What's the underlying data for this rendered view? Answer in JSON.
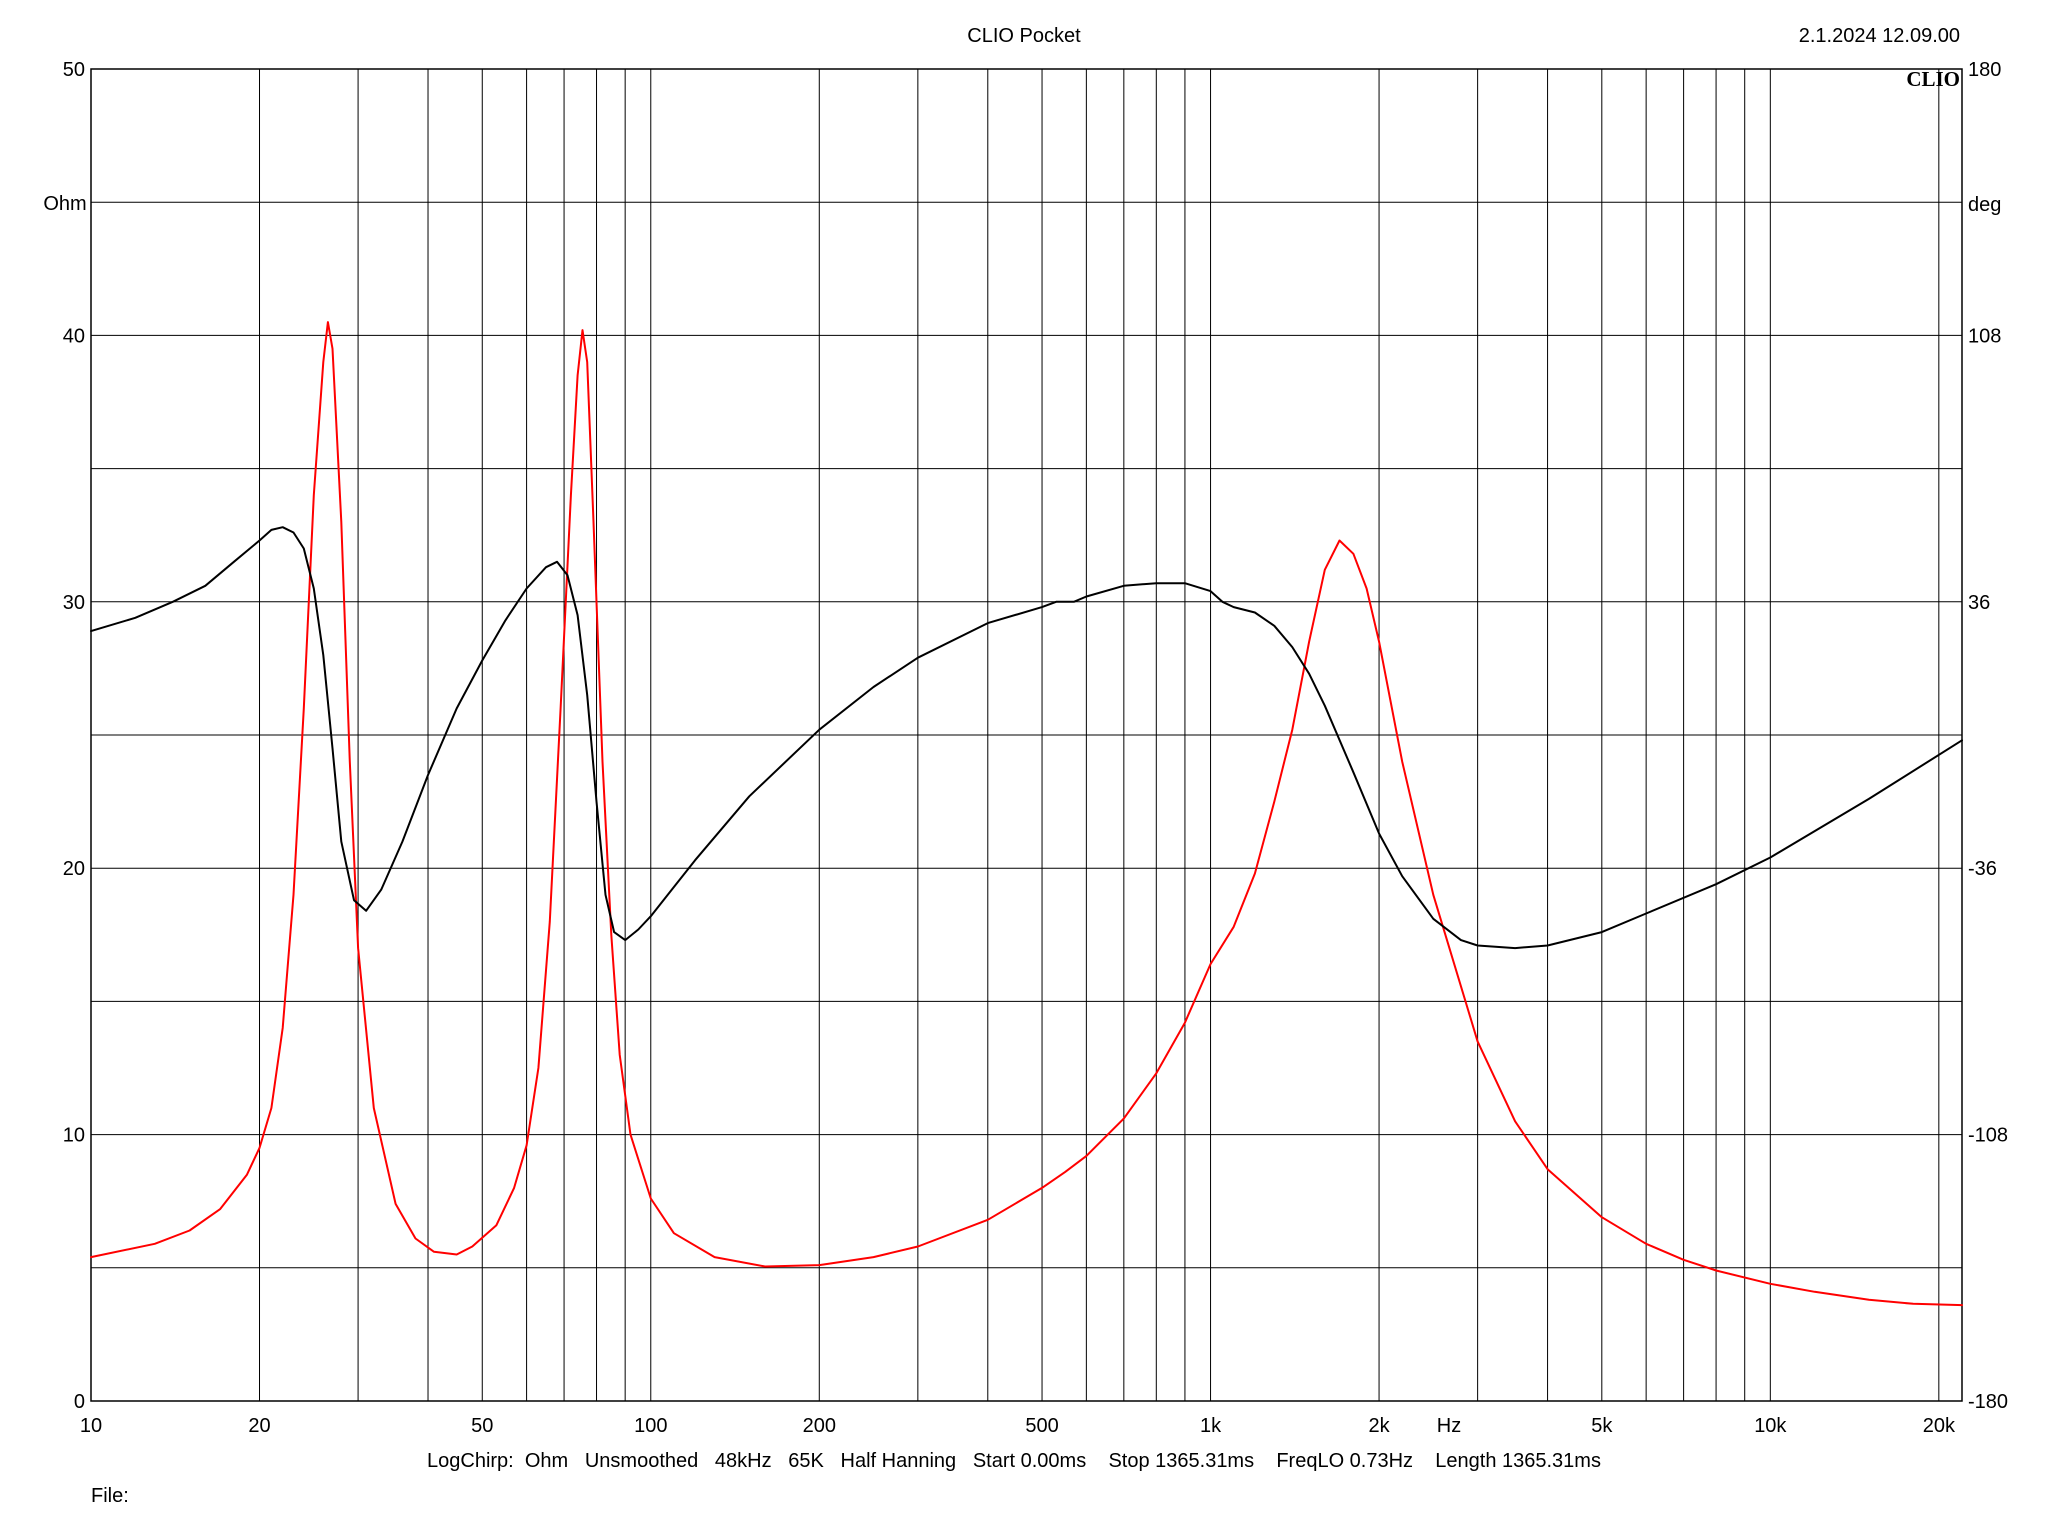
{
  "header": {
    "title": "CLIO Pocket",
    "datetime": "2.1.2024 12.09.00",
    "logo": "CLIO"
  },
  "footer": {
    "settings": "LogChirp:  Ohm   Unsmoothed   48kHz   65K   Half Hanning   Start 0.00ms    Stop 1365.31ms    FreqLO 0.73Hz    Length 1365.31ms",
    "file_label": "File:"
  },
  "chart_data": {
    "type": "line",
    "xscale": "log",
    "xlim": [
      10,
      22000
    ],
    "ylim": [
      0,
      50
    ],
    "y2lim": [
      -180,
      180
    ],
    "grid": true,
    "xlabel": "Hz",
    "ylabel": "Ohm",
    "y2label": "deg",
    "x_ticks": [
      {
        "value": 10,
        "label": "10"
      },
      {
        "value": 20,
        "label": "20"
      },
      {
        "value": 50,
        "label": "50"
      },
      {
        "value": 100,
        "label": "100"
      },
      {
        "value": 200,
        "label": "200"
      },
      {
        "value": 500,
        "label": "500"
      },
      {
        "value": 1000,
        "label": "1k"
      },
      {
        "value": 2000,
        "label": "2k"
      },
      {
        "value": 5000,
        "label": "5k"
      },
      {
        "value": 10000,
        "label": "10k"
      },
      {
        "value": 20000,
        "label": "20k"
      }
    ],
    "y_ticks": [
      {
        "value": 0,
        "label": "0"
      },
      {
        "value": 10,
        "label": "10"
      },
      {
        "value": 20,
        "label": "20"
      },
      {
        "value": 30,
        "label": "30"
      },
      {
        "value": 40,
        "label": "40"
      },
      {
        "value": 50,
        "label": "50"
      }
    ],
    "y2_ticks": [
      {
        "value": -180,
        "label": "-180"
      },
      {
        "value": -108,
        "label": "-108"
      },
      {
        "value": -36,
        "label": "-36"
      },
      {
        "value": 36,
        "label": "36"
      },
      {
        "value": 108,
        "label": "108"
      },
      {
        "value": 180,
        "label": "180"
      }
    ],
    "series": [
      {
        "axis": "left",
        "color": "#ff0000",
        "points": [
          [
            10,
            5.4
          ],
          [
            13,
            5.9
          ],
          [
            15,
            6.4
          ],
          [
            17,
            7.2
          ],
          [
            19,
            8.5
          ],
          [
            20,
            9.5
          ],
          [
            21,
            11
          ],
          [
            22,
            14
          ],
          [
            23,
            19
          ],
          [
            24,
            26
          ],
          [
            25,
            34
          ],
          [
            26,
            39
          ],
          [
            26.5,
            40.5
          ],
          [
            27,
            39.5
          ],
          [
            28,
            33
          ],
          [
            29,
            24
          ],
          [
            30,
            17
          ],
          [
            32,
            11
          ],
          [
            35,
            7.4
          ],
          [
            38,
            6.1
          ],
          [
            41,
            5.6
          ],
          [
            45,
            5.5
          ],
          [
            48,
            5.8
          ],
          [
            53,
            6.6
          ],
          [
            57,
            8
          ],
          [
            60,
            9.6
          ],
          [
            63,
            12.5
          ],
          [
            66,
            18
          ],
          [
            69,
            26
          ],
          [
            72,
            34
          ],
          [
            74,
            38.5
          ],
          [
            75.5,
            40.2
          ],
          [
            77,
            39
          ],
          [
            79,
            33
          ],
          [
            82,
            24
          ],
          [
            85,
            17.5
          ],
          [
            88,
            13
          ],
          [
            92,
            10
          ],
          [
            100,
            7.6
          ],
          [
            110,
            6.3
          ],
          [
            130,
            5.4
          ],
          [
            160,
            5.05
          ],
          [
            200,
            5.1
          ],
          [
            250,
            5.4
          ],
          [
            300,
            5.8
          ],
          [
            400,
            6.8
          ],
          [
            500,
            8
          ],
          [
            550,
            8.6
          ],
          [
            600,
            9.2
          ],
          [
            700,
            10.6
          ],
          [
            800,
            12.3
          ],
          [
            900,
            14.2
          ],
          [
            1000,
            16.4
          ],
          [
            1100,
            17.8
          ],
          [
            1200,
            19.8
          ],
          [
            1300,
            22.5
          ],
          [
            1400,
            25.2
          ],
          [
            1500,
            28.5
          ],
          [
            1600,
            31.2
          ],
          [
            1700,
            32.3
          ],
          [
            1800,
            31.8
          ],
          [
            1900,
            30.5
          ],
          [
            2000,
            28.5
          ],
          [
            2200,
            24
          ],
          [
            2500,
            19
          ],
          [
            3000,
            13.5
          ],
          [
            3500,
            10.5
          ],
          [
            4000,
            8.7
          ],
          [
            5000,
            6.9
          ],
          [
            6000,
            5.9
          ],
          [
            7000,
            5.3
          ],
          [
            8000,
            4.9
          ],
          [
            10000,
            4.4
          ],
          [
            12000,
            4.1
          ],
          [
            15000,
            3.8
          ],
          [
            18000,
            3.65
          ],
          [
            22000,
            3.6
          ]
        ]
      },
      {
        "axis": "right",
        "color": "#000000",
        "points": [
          [
            10,
            28.9
          ],
          [
            12,
            29.4
          ],
          [
            14,
            30
          ],
          [
            16,
            30.6
          ],
          [
            18,
            31.5
          ],
          [
            20,
            32.3
          ],
          [
            21,
            32.7
          ],
          [
            22,
            32.8
          ],
          [
            23,
            32.6
          ],
          [
            24,
            32
          ],
          [
            25,
            30.5
          ],
          [
            26,
            28
          ],
          [
            27,
            24.5
          ],
          [
            28,
            21
          ],
          [
            29.5,
            18.8
          ],
          [
            31,
            18.4
          ],
          [
            33,
            19.2
          ],
          [
            36,
            21
          ],
          [
            40,
            23.5
          ],
          [
            45,
            26
          ],
          [
            50,
            27.8
          ],
          [
            55,
            29.3
          ],
          [
            60,
            30.5
          ],
          [
            65,
            31.3
          ],
          [
            68,
            31.5
          ],
          [
            71,
            31
          ],
          [
            74,
            29.5
          ],
          [
            77,
            26.5
          ],
          [
            80,
            22.5
          ],
          [
            83,
            19
          ],
          [
            86,
            17.6
          ],
          [
            90,
            17.3
          ],
          [
            95,
            17.7
          ],
          [
            100,
            18.2
          ],
          [
            120,
            20.3
          ],
          [
            150,
            22.7
          ],
          [
            200,
            25.2
          ],
          [
            250,
            26.8
          ],
          [
            300,
            27.9
          ],
          [
            400,
            29.2
          ],
          [
            500,
            29.8
          ],
          [
            530,
            30
          ],
          [
            570,
            30
          ],
          [
            600,
            30.2
          ],
          [
            700,
            30.6
          ],
          [
            800,
            30.7
          ],
          [
            900,
            30.7
          ],
          [
            1000,
            30.4
          ],
          [
            1050,
            30
          ],
          [
            1100,
            29.8
          ],
          [
            1200,
            29.6
          ],
          [
            1300,
            29.1
          ],
          [
            1400,
            28.3
          ],
          [
            1500,
            27.3
          ],
          [
            1600,
            26.1
          ],
          [
            1800,
            23.6
          ],
          [
            2000,
            21.3
          ],
          [
            2200,
            19.7
          ],
          [
            2500,
            18.1
          ],
          [
            2800,
            17.3
          ],
          [
            3000,
            17.1
          ],
          [
            3500,
            17
          ],
          [
            4000,
            17.1
          ],
          [
            5000,
            17.6
          ],
          [
            6000,
            18.3
          ],
          [
            8000,
            19.4
          ],
          [
            10000,
            20.4
          ],
          [
            15000,
            22.6
          ],
          [
            22000,
            24.8
          ]
        ]
      }
    ]
  }
}
